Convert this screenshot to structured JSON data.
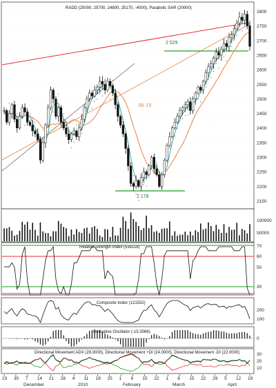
{
  "chart_data": {
    "type": "line",
    "ohlc_header": "RADD (25000, 25700, 24800, 25170, -4000), Parabolic SAR (20000)",
    "price_axis": {
      "ylim": [
        2130,
        2820
      ],
      "ticks": [
        "2800",
        "2750",
        "2700",
        "2650",
        "2600",
        "2550",
        "2500",
        "2450",
        "2400",
        "2350",
        "2300",
        "2250",
        "2200",
        "2150"
      ]
    },
    "volume_axis": {
      "ticks": [
        "100000",
        "50000"
      ]
    },
    "annotations": {
      "high_level": "2 529",
      "low_level": "2 178",
      "ma_label": "SK-15"
    },
    "date_ticks": [
      "23",
      "30",
      "7",
      "14",
      "21",
      "28",
      "4",
      "11",
      "18",
      "25",
      "1",
      "8",
      "15",
      "22",
      "1",
      "8",
      "15",
      "22",
      "29",
      "5",
      "12",
      "19"
    ],
    "month_labels": [
      "December",
      "2010",
      "February",
      "March",
      "April"
    ],
    "price_series": {
      "name": "RADD",
      "close": [
        2460,
        2420,
        2450,
        2480,
        2430,
        2400,
        2440,
        2470,
        2455,
        2420,
        2410,
        2390,
        2380,
        2360,
        2290,
        2350,
        2410,
        2470,
        2530,
        2500,
        2440,
        2470,
        2420,
        2400,
        2380,
        2360,
        2380,
        2390,
        2370,
        2400,
        2430,
        2470,
        2500,
        2520,
        2510,
        2530,
        2540,
        2560,
        2550,
        2530,
        2560,
        2545,
        2520,
        2480,
        2440,
        2410,
        2380,
        2330,
        2270,
        2210,
        2200,
        2220,
        2200,
        2230,
        2250,
        2240,
        2270,
        2300,
        2260,
        2240,
        2200,
        2240,
        2290,
        2340,
        2370,
        2400,
        2420,
        2440,
        2460,
        2470,
        2480,
        2490,
        2460,
        2500,
        2520,
        2540,
        2530,
        2560,
        2590,
        2610,
        2620,
        2640,
        2660,
        2650,
        2670,
        2690,
        2680,
        2710,
        2720,
        2740,
        2760,
        2780,
        2770,
        2790,
        2750,
        2680
      ],
      "ma_series_names": [
        "SMA",
        "SK-15"
      ]
    },
    "panels": [
      {
        "title": "Relative Strength Index (536118)",
        "ticks": [
          "70",
          "60",
          "50",
          "30"
        ],
        "levels": [
          70,
          60,
          30,
          25
        ],
        "ylim": [
          20,
          80
        ]
      },
      {
        "title": "Composite Index (121532)",
        "ticks": [
          "200",
          "100"
        ],
        "ylim": [
          60,
          240
        ]
      },
      {
        "title": "Derivative Oscillator (-15.3086)",
        "ticks": [
          "0"
        ],
        "ylim": [
          -40,
          40
        ]
      },
      {
        "title": "Directional Movement ADX (28.0000), Directional Movement +DI (24.0000), Directional Movement -DI (22.0000)",
        "ticks": [
          "30",
          "20",
          "10"
        ],
        "ylim": [
          0,
          45
        ]
      }
    ],
    "colors": {
      "price": "#222222",
      "ma1": "#1aa0a0",
      "ma2": "#e8813a",
      "trend_red": "#e53030",
      "level_green": "#1aa01a",
      "di_minus": "#e53030",
      "di_plus": "#1aa01a",
      "adx": "#222222"
    }
  }
}
